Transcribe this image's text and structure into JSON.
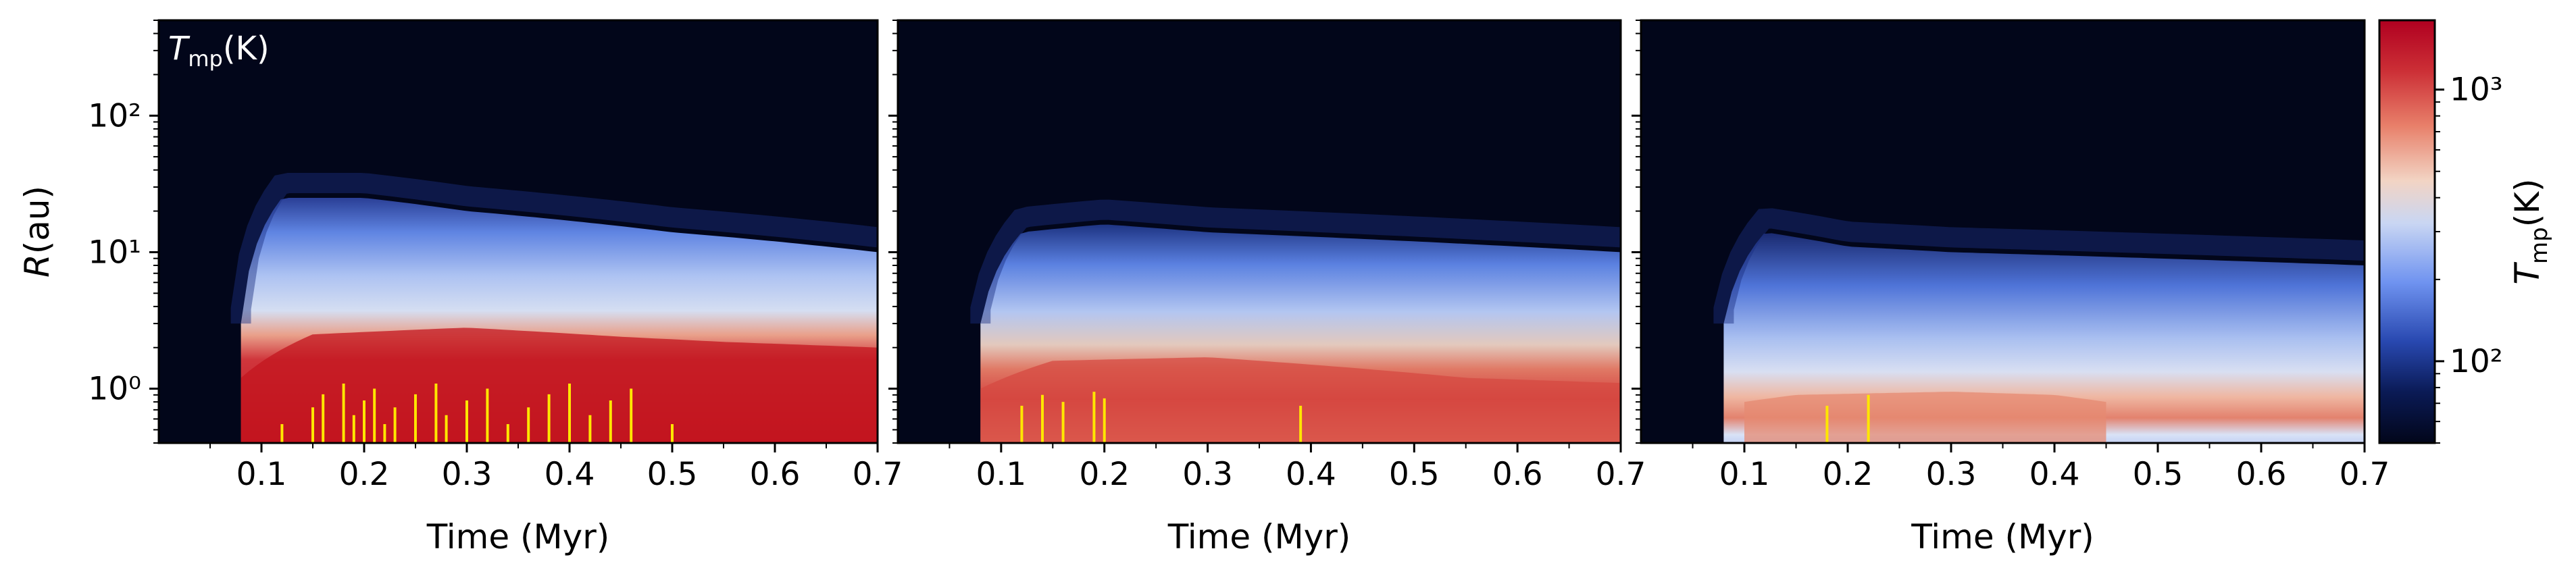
{
  "chart_data": [
    {
      "type": "heatmap",
      "panel": 1,
      "annotation": "T_mp(K)",
      "xlabel": "Time (Myr)",
      "ylabel": "R(au)",
      "xlim": [
        0.0,
        0.7
      ],
      "ylim": [
        0.4,
        500
      ],
      "yscale": "log",
      "x_ticks": [
        0.1,
        0.2,
        0.3,
        0.4,
        0.5,
        0.6,
        0.7
      ],
      "x_tick_labels": [
        "0.1",
        "0.2",
        "0.3",
        "0.4",
        "0.5",
        "0.6",
        "0.7"
      ],
      "y_ticks": [
        1,
        10,
        100
      ],
      "y_tick_labels": [
        "10⁰",
        "10¹",
        "10²"
      ],
      "disk_start_myr": 0.08,
      "outer_edge_au": {
        "t": [
          0.08,
          0.12,
          0.2,
          0.3,
          0.4,
          0.5,
          0.6,
          0.7
        ],
        "r": [
          3,
          25,
          25,
          20,
          17,
          14,
          12,
          10
        ]
      },
      "hot_region_edge_au": {
        "t": [
          0.08,
          0.15,
          0.3,
          0.45,
          0.55,
          0.7
        ],
        "r": [
          1.2,
          2.5,
          2.8,
          2.4,
          2.2,
          2.0
        ]
      },
      "outbursts_myr": [
        0.12,
        0.15,
        0.16,
        0.18,
        0.19,
        0.2,
        0.21,
        0.22,
        0.23,
        0.25,
        0.27,
        0.28,
        0.3,
        0.32,
        0.34,
        0.36,
        0.38,
        0.4,
        0.42,
        0.44,
        0.46,
        0.5
      ]
    },
    {
      "type": "heatmap",
      "panel": 2,
      "xlabel": "Time (Myr)",
      "xlim": [
        0.0,
        0.7
      ],
      "ylim": [
        0.4,
        500
      ],
      "yscale": "log",
      "x_ticks": [
        0.1,
        0.2,
        0.3,
        0.4,
        0.5,
        0.6,
        0.7
      ],
      "x_tick_labels": [
        "0.1",
        "0.2",
        "0.3",
        "0.4",
        "0.5",
        "0.6",
        "0.7"
      ],
      "disk_start_myr": 0.08,
      "outer_edge_au": {
        "t": [
          0.08,
          0.12,
          0.2,
          0.3,
          0.4,
          0.5,
          0.6,
          0.7
        ],
        "r": [
          3,
          14,
          16,
          14,
          13,
          12,
          11,
          10
        ]
      },
      "hot_region_edge_au": {
        "t": [
          0.08,
          0.15,
          0.3,
          0.45,
          0.55,
          0.7
        ],
        "r": [
          1.0,
          1.6,
          1.7,
          1.4,
          1.2,
          1.1
        ]
      },
      "outbursts_myr": [
        0.12,
        0.14,
        0.16,
        0.19,
        0.2,
        0.39
      ]
    },
    {
      "type": "heatmap",
      "panel": 3,
      "xlabel": "Time (Myr)",
      "xlim": [
        0.0,
        0.7
      ],
      "ylim": [
        0.4,
        500
      ],
      "yscale": "log",
      "x_ticks": [
        0.1,
        0.2,
        0.3,
        0.4,
        0.5,
        0.6,
        0.7
      ],
      "x_tick_labels": [
        "0.1",
        "0.2",
        "0.3",
        "0.4",
        "0.5",
        "0.6",
        "0.7"
      ],
      "disk_start_myr": 0.08,
      "outer_edge_au": {
        "t": [
          0.08,
          0.12,
          0.2,
          0.3,
          0.4,
          0.5,
          0.6,
          0.7
        ],
        "r": [
          3,
          14,
          11,
          10,
          9.5,
          9,
          8.5,
          8
        ]
      },
      "hot_region_edge_au": {
        "t": [
          0.1,
          0.15,
          0.3,
          0.4,
          0.45
        ],
        "r": [
          0.8,
          0.9,
          0.95,
          0.9,
          0.8
        ]
      },
      "outbursts_myr": [
        0.18,
        0.22
      ]
    }
  ],
  "colorbar": {
    "label": "T_mp(K)",
    "scale": "log",
    "range": [
      50,
      1800
    ],
    "ticks": [
      100,
      1000
    ],
    "tick_labels": [
      "10²",
      "10³"
    ],
    "colormap": "coolwarm-extended",
    "low_color": "#02061a",
    "high_color": "#b00020"
  },
  "outburst_color": "#ffe600"
}
